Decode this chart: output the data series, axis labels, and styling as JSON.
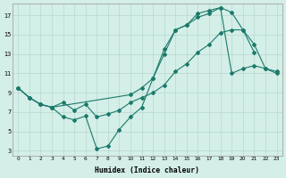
{
  "xlabel": "Humidex (Indice chaleur)",
  "background_color": "#d4eee8",
  "grid_color": "#b8d8d0",
  "line_color": "#1a7a6a",
  "xlim": [
    -0.5,
    23.5
  ],
  "ylim": [
    2.5,
    18.2
  ],
  "xticks": [
    0,
    1,
    2,
    3,
    4,
    5,
    6,
    7,
    8,
    9,
    10,
    11,
    12,
    13,
    14,
    15,
    16,
    17,
    18,
    19,
    20,
    21,
    22,
    23
  ],
  "yticks": [
    3,
    5,
    7,
    9,
    11,
    13,
    15,
    17
  ],
  "series1_x": [
    0,
    1,
    2,
    3,
    4,
    5,
    6,
    7,
    8,
    9,
    10,
    11,
    12,
    13,
    14,
    15,
    16,
    17,
    18,
    19,
    20,
    21
  ],
  "series1_y": [
    9.5,
    8.5,
    7.8,
    7.5,
    6.5,
    6.2,
    6.6,
    3.2,
    3.5,
    5.2,
    6.5,
    7.5,
    10.5,
    13.5,
    15.5,
    16.0,
    17.2,
    17.5,
    17.8,
    17.3,
    15.5,
    13.2
  ],
  "series2_x": [
    0,
    1,
    2,
    3,
    4,
    5,
    6,
    7,
    8,
    9,
    10,
    11,
    12,
    13,
    14,
    15,
    16,
    17,
    18,
    19,
    20,
    21,
    22,
    23
  ],
  "series2_y": [
    9.5,
    8.5,
    7.8,
    7.5,
    8.0,
    7.2,
    7.8,
    6.5,
    6.8,
    7.2,
    8.0,
    8.5,
    9.0,
    9.8,
    11.2,
    12.0,
    13.2,
    14.0,
    15.2,
    15.5,
    15.5,
    14.0,
    11.5,
    11.0
  ],
  "series3_x": [
    0,
    1,
    2,
    3,
    10,
    11,
    12,
    13,
    14,
    15,
    16,
    17,
    18,
    19,
    20,
    21,
    22,
    23
  ],
  "series3_y": [
    9.5,
    8.5,
    7.8,
    7.5,
    8.8,
    9.5,
    10.5,
    13.0,
    15.5,
    16.0,
    16.8,
    17.2,
    17.8,
    11.0,
    11.5,
    11.8,
    11.5,
    11.2
  ]
}
